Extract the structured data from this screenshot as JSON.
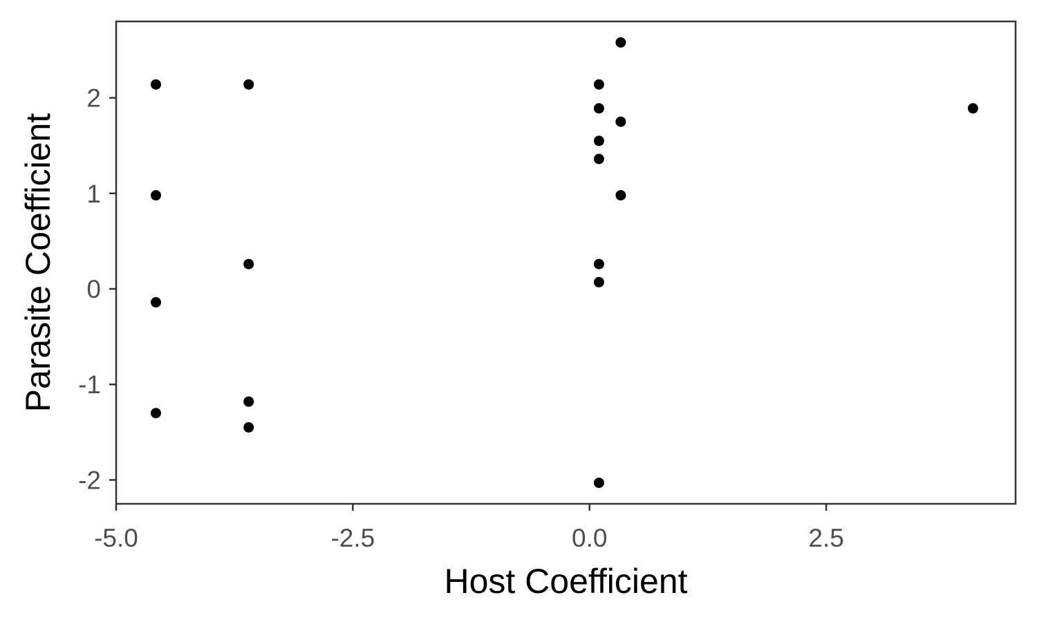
{
  "chart_data": {
    "type": "scatter",
    "title": "",
    "xlabel": "Host Coefficient",
    "ylabel": "Parasite Coefficient",
    "xlim": [
      -5.0,
      4.5
    ],
    "ylim": [
      -2.25,
      2.8
    ],
    "xticks": [
      -5.0,
      -2.5,
      0.0,
      2.5
    ],
    "xtick_labels": [
      "-5.0",
      "-2.5",
      "0.0",
      "2.5"
    ],
    "yticks": [
      -2,
      -1,
      0,
      1,
      2
    ],
    "ytick_labels": [
      "-2",
      "-1",
      "0",
      "1",
      "2"
    ],
    "grid": false,
    "legend": "none",
    "point_color": "#000000",
    "panel_border_color": "#333333",
    "series": [
      {
        "x": [
          -4.58,
          -4.58,
          -4.58,
          -4.58,
          -3.6,
          -3.6,
          -3.6,
          -3.6,
          0.1,
          0.1,
          0.1,
          0.1,
          0.1,
          0.1,
          0.1,
          0.33,
          0.33,
          0.33,
          4.05
        ],
        "y": [
          2.14,
          0.98,
          -0.14,
          -1.3,
          2.14,
          0.26,
          -1.18,
          -1.45,
          2.14,
          1.89,
          1.55,
          1.36,
          0.26,
          0.07,
          -2.03,
          2.58,
          1.75,
          0.98,
          1.89
        ]
      }
    ]
  }
}
